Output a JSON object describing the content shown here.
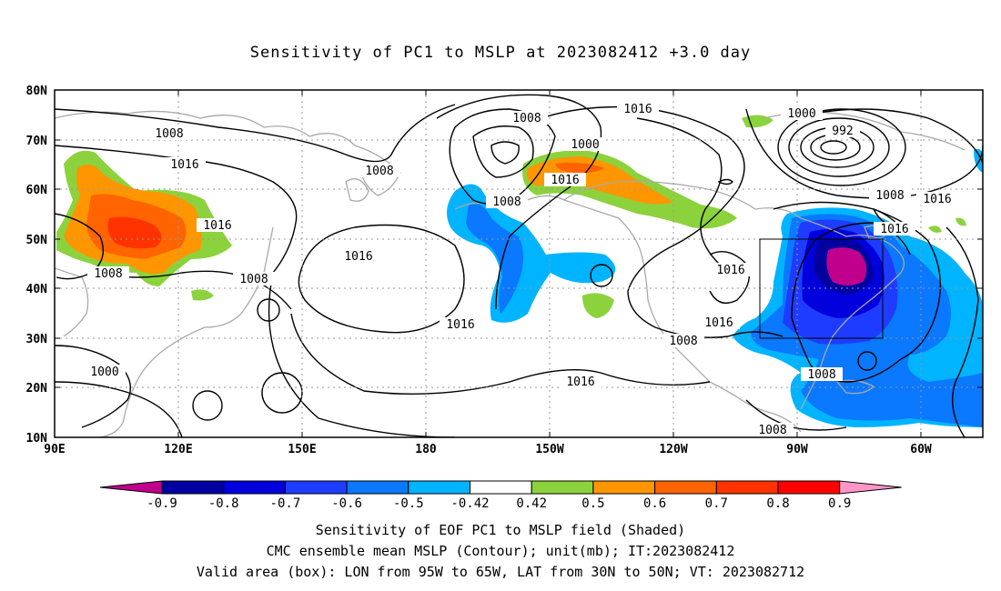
{
  "title": "Sensitivity of PC1 to MSLP at 2023082412 +3.0 day",
  "lat_labels": [
    "80N",
    "70N",
    "60N",
    "50N",
    "40N",
    "30N",
    "20N",
    "10N"
  ],
  "lon_labels": [
    "90E",
    "120E",
    "150E",
    "180",
    "150W",
    "120W",
    "90W",
    "60W"
  ],
  "colorbar": {
    "labels": [
      "-0.9",
      "-0.8",
      "-0.7",
      "-0.6",
      "-0.5",
      "-0.42",
      "0.42",
      "0.5",
      "0.6",
      "0.7",
      "0.8",
      "0.9"
    ],
    "colors": [
      "#c0008c",
      "#0000a0",
      "#0000dc",
      "#1e3cff",
      "#0a78ff",
      "#00b4ff",
      "#ffffff",
      "#8cd23c",
      "#ff9600",
      "#ff6400",
      "#ff3200",
      "#ff0000",
      "#ff96c8"
    ]
  },
  "contour_labels": {
    "c1": "1008",
    "c2": "1016",
    "c3": "1016",
    "c4": "1008",
    "c5": "1008",
    "c6": "1000",
    "c7": "1016",
    "c8": "1016",
    "c9": "1008",
    "c10": "1016",
    "c11": "1000",
    "c12": "1016",
    "c13": "1008",
    "c14": "1016",
    "c15": "1000",
    "c16": "992",
    "c17": "1008",
    "c18": "1016",
    "c19": "1016",
    "c20": "1016",
    "c21": "1008",
    "c22": "1016",
    "c23": "1008",
    "c24": "1008"
  },
  "captions": {
    "line1": "Sensitivity of EOF PC1 to MSLP field (Shaded)",
    "line2": "CMC ensemble mean MSLP (Contour); unit(mb); IT:2023082412",
    "line3": "Valid area (box): LON from 95W to 65W, LAT from 30N to 50N; VT: 2023082712"
  }
}
